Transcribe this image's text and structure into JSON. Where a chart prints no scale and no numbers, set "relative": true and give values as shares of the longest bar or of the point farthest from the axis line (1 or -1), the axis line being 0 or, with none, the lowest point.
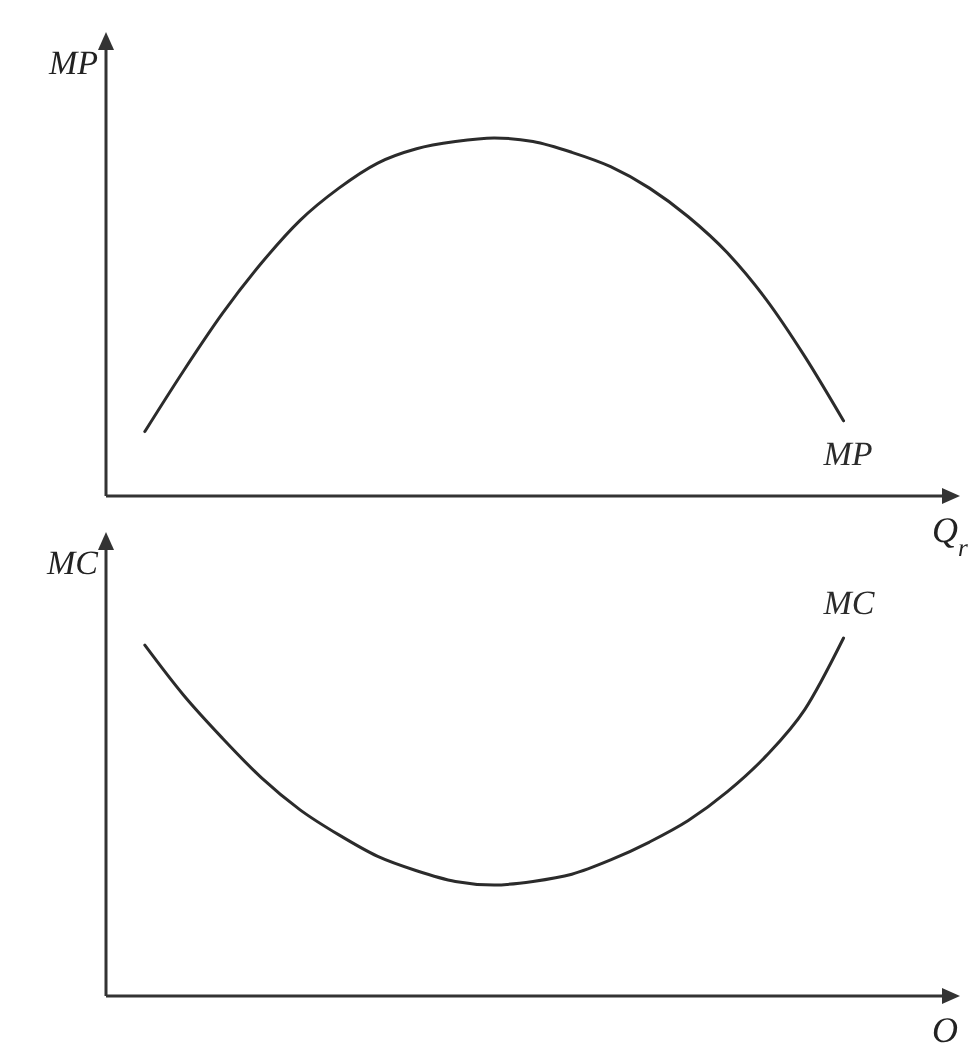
{
  "chart_data": [
    {
      "type": "line",
      "ylabel": "MP",
      "xlabel": "Q$_{r}$",
      "relative": true,
      "line_style": "solid",
      "categories": [
        null,
        null,
        null,
        null,
        null,
        null,
        null,
        null,
        null,
        null,
        null,
        null,
        null,
        null,
        null,
        null,
        null,
        null,
        null,
        null,
        null,
        null,
        null
      ],
      "series": [
        {
          "name": "MP",
          "color": "#2b2b2b",
          "values": [
            null,
            0.18,
            0.35,
            0.51,
            0.65,
            0.77,
            0.86,
            0.93,
            0.97,
            0.99,
            1,
            0.99,
            0.96,
            0.92,
            0.86,
            0.78,
            0.68,
            0.55,
            0.39,
            0.21,
            null,
            null,
            null
          ]
        }
      ]
    },
    {
      "type": "line",
      "ylabel": "MC",
      "xlabel": "O",
      "relative": true,
      "line_style": "solid",
      "categories": [
        null,
        null,
        null,
        null,
        null,
        null,
        null,
        null,
        null,
        null,
        null,
        null,
        null,
        null,
        null,
        null,
        null,
        null,
        null,
        null,
        null,
        null,
        null
      ],
      "series": [
        {
          "name": "MC",
          "color": "#2b2b2b",
          "values": [
            null,
            0.98,
            0.84,
            0.72,
            0.61,
            0.52,
            0.45,
            0.39,
            0.35,
            0.32,
            0.31,
            0.32,
            0.34,
            0.38,
            0.43,
            0.49,
            0.57,
            0.67,
            0.8,
            1,
            null,
            null,
            null
          ]
        }
      ]
    }
  ]
}
